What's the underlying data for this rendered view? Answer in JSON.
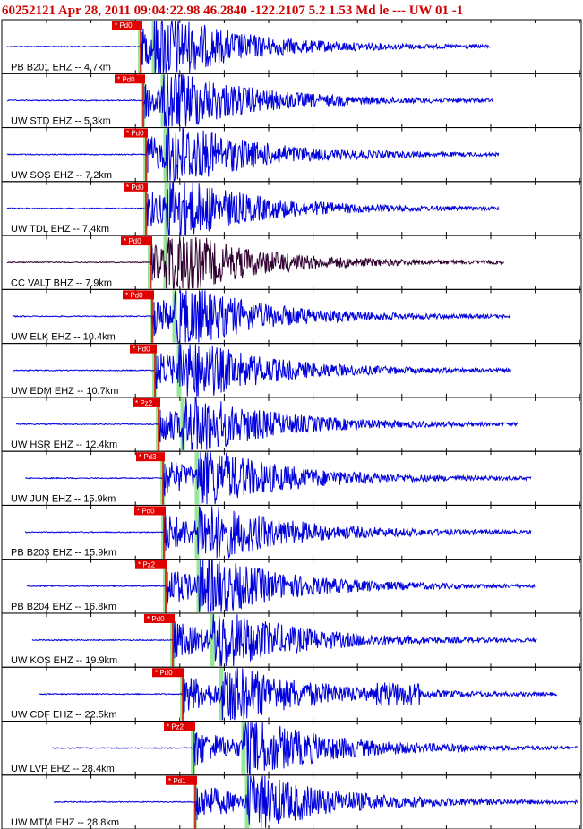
{
  "header": {
    "title": "60252121 Apr 28, 2011 09:04:22.98   46.2840 -122.2107  5.2 1.53 Md le --- UW 01  -1"
  },
  "traces": [
    {
      "label": "PB B201 EHZ -- 4.7km",
      "pick": "* Pd0"
    },
    {
      "label": "UW STD EHZ -- 5.3km",
      "pick": "* Pd0"
    },
    {
      "label": "UW SOS EHZ -- 7.2km",
      "pick": "* Pd0"
    },
    {
      "label": "UW TDL EHZ -- 7.4km",
      "pick": "* Pd0"
    },
    {
      "label": "CC VALT BHZ -- 7.9km",
      "pick": "* Pd0"
    },
    {
      "label": "UW ELK EHZ -- 10.4km",
      "pick": "* Pd0"
    },
    {
      "label": "UW EDM EHZ -- 10.7km",
      "pick": "* Pd0"
    },
    {
      "label": "UW HSR EHZ -- 12.4km",
      "pick": "* Pz2"
    },
    {
      "label": "UW JUN EHZ -- 15.9km",
      "pick": "* Pd3"
    },
    {
      "label": "PB B203 EHZ -- 15.9km",
      "pick": "* Pd0"
    },
    {
      "label": "PB B204 EHZ -- 16.8km",
      "pick": "* Pz2"
    },
    {
      "label": "UW KOS EHZ -- 19.9km",
      "pick": "* Pd0"
    },
    {
      "label": "UW CDF EHZ -- 22.5km",
      "pick": "* Pd0"
    },
    {
      "label": "UW LVP EHZ -- 28.4km",
      "pick": "* Pz2"
    },
    {
      "label": "UW MTM EHZ -- 28.8km",
      "pick": "* Pd1"
    }
  ]
}
